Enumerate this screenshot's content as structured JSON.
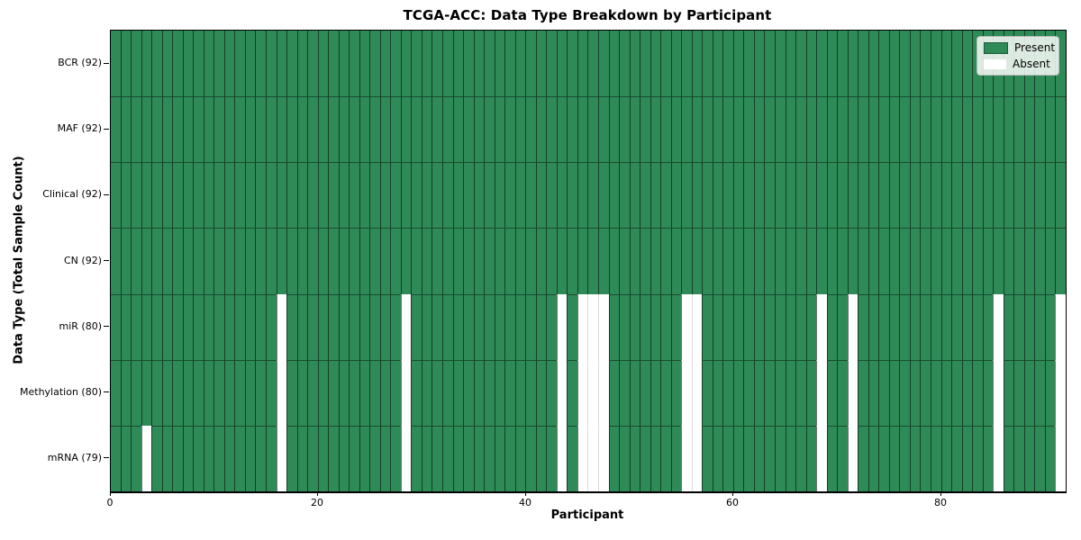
{
  "title": "TCGA-ACC: Data Type Breakdown by Participant",
  "xlabel": "Participant",
  "ylabel": "Data Type (Total Sample Count)",
  "legend": {
    "present_label": "Present",
    "absent_label": "Absent"
  },
  "colors": {
    "present": "#2e8b57",
    "absent": "#ffffff",
    "present_edge": "rgba(0,0,0,0.55)",
    "row_line": "rgba(0,0,0,0.45)",
    "absent_edge": "#dcdcdc",
    "frame": "#000000"
  },
  "chart_data": {
    "type": "heatmap",
    "title": "TCGA-ACC: Data Type Breakdown by Participant",
    "xlabel": "Participant",
    "ylabel": "Data Type (Total Sample Count)",
    "legend_position": "upper right",
    "legend": [
      {
        "label": "Present",
        "color": "#2e8b57"
      },
      {
        "label": "Absent",
        "color": "#ffffff"
      }
    ],
    "n_participants": 92,
    "x_ticks": [
      0,
      20,
      40,
      60,
      80
    ],
    "x_range": [
      0,
      92
    ],
    "categories": [
      "BCR (92)",
      "MAF (92)",
      "Clinical (92)",
      "CN (92)",
      "miR (80)",
      "Methylation (80)",
      "mRNA (79)"
    ],
    "rows": [
      {
        "label": "BCR (92)",
        "data_type": "BCR",
        "present_count": 92,
        "absent_participants": []
      },
      {
        "label": "MAF (92)",
        "data_type": "MAF",
        "present_count": 92,
        "absent_participants": []
      },
      {
        "label": "Clinical (92)",
        "data_type": "Clinical",
        "present_count": 92,
        "absent_participants": []
      },
      {
        "label": "CN (92)",
        "data_type": "CN",
        "present_count": 92,
        "absent_participants": []
      },
      {
        "label": "miR (80)",
        "data_type": "miR",
        "present_count": 80,
        "absent_participants": [
          16,
          28,
          43,
          45,
          46,
          47,
          55,
          56,
          68,
          71,
          85,
          91
        ]
      },
      {
        "label": "Methylation (80)",
        "data_type": "Methylation",
        "present_count": 80,
        "absent_participants": [
          16,
          28,
          43,
          45,
          46,
          47,
          55,
          56,
          68,
          71,
          85,
          91
        ]
      },
      {
        "label": "mRNA (79)",
        "data_type": "mRNA",
        "present_count": 79,
        "absent_participants": [
          3,
          16,
          28,
          43,
          45,
          46,
          47,
          55,
          56,
          68,
          71,
          85,
          91
        ]
      }
    ]
  }
}
